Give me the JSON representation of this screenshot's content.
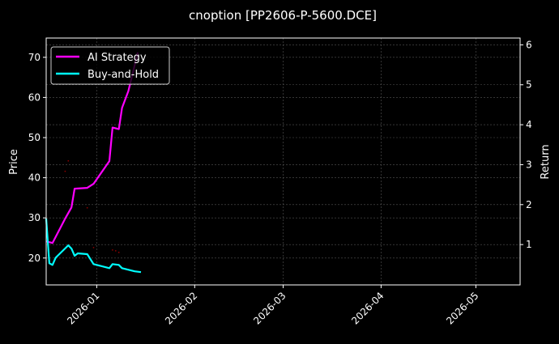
{
  "chart_data": {
    "type": "line",
    "title": "cnoption [PP2606-P-5600.DCE]",
    "ylabel_left": "Price",
    "ylabel_right": "Return",
    "xlim": [
      "2025-12-16",
      "2026-05-15"
    ],
    "ylim_left": [
      13.3,
      74.8
    ],
    "ylim_right": [
      -0.01,
      6.17
    ],
    "x_ticks": [
      "2026-01",
      "2026-02",
      "2026-03",
      "2026-04",
      "2026-05"
    ],
    "x_tick_dates": [
      "2026-01-01",
      "2026-02-01",
      "2026-03-01",
      "2026-04-01",
      "2026-05-01"
    ],
    "y_ticks_left": [
      20,
      30,
      40,
      50,
      60,
      70
    ],
    "y_ticks_right": [
      1,
      2,
      3,
      4,
      5,
      6
    ],
    "grid": true,
    "legend_position": "top-left",
    "background": "#000000",
    "series": [
      {
        "name": "AI Strategy",
        "axis": "right",
        "color": "#ff00ff",
        "points": [
          [
            "2025-12-16",
            1.08
          ],
          [
            "2025-12-18",
            1.04
          ],
          [
            "2025-12-22",
            1.65
          ],
          [
            "2025-12-24",
            1.93
          ],
          [
            "2025-12-25",
            2.4
          ],
          [
            "2025-12-29",
            2.42
          ],
          [
            "2025-12-31",
            2.52
          ],
          [
            "2026-01-05",
            3.09
          ],
          [
            "2026-01-06",
            3.93
          ],
          [
            "2026-01-08",
            3.89
          ],
          [
            "2026-01-09",
            4.42
          ],
          [
            "2026-01-11",
            4.84
          ],
          [
            "2026-01-14",
            5.81
          ]
        ]
      },
      {
        "name": "Buy-and-Hold",
        "axis": "right",
        "color": "#00ffff",
        "points": [
          [
            "2025-12-16",
            1.65
          ],
          [
            "2025-12-17",
            0.53
          ],
          [
            "2025-12-18",
            0.49
          ],
          [
            "2025-12-19",
            0.67
          ],
          [
            "2025-12-23",
            0.98
          ],
          [
            "2025-12-24",
            0.9
          ],
          [
            "2025-12-25",
            0.72
          ],
          [
            "2025-12-26",
            0.78
          ],
          [
            "2025-12-29",
            0.76
          ],
          [
            "2025-12-31",
            0.51
          ],
          [
            "2026-01-05",
            0.41
          ],
          [
            "2026-01-06",
            0.51
          ],
          [
            "2026-01-08",
            0.49
          ],
          [
            "2026-01-09",
            0.41
          ],
          [
            "2026-01-13",
            0.33
          ],
          [
            "2026-01-15",
            0.31
          ]
        ]
      }
    ],
    "price_markers": {
      "axis": "left",
      "color": "#8b0000",
      "points": [
        [
          "2025-12-22",
          41.6
        ],
        [
          "2025-12-23",
          44.2
        ],
        [
          "2025-12-29",
          32.5
        ],
        [
          "2025-12-31",
          22.6
        ],
        [
          "2026-01-06",
          22.0
        ],
        [
          "2026-01-07",
          21.8
        ],
        [
          "2026-01-08",
          21.4
        ]
      ]
    }
  }
}
